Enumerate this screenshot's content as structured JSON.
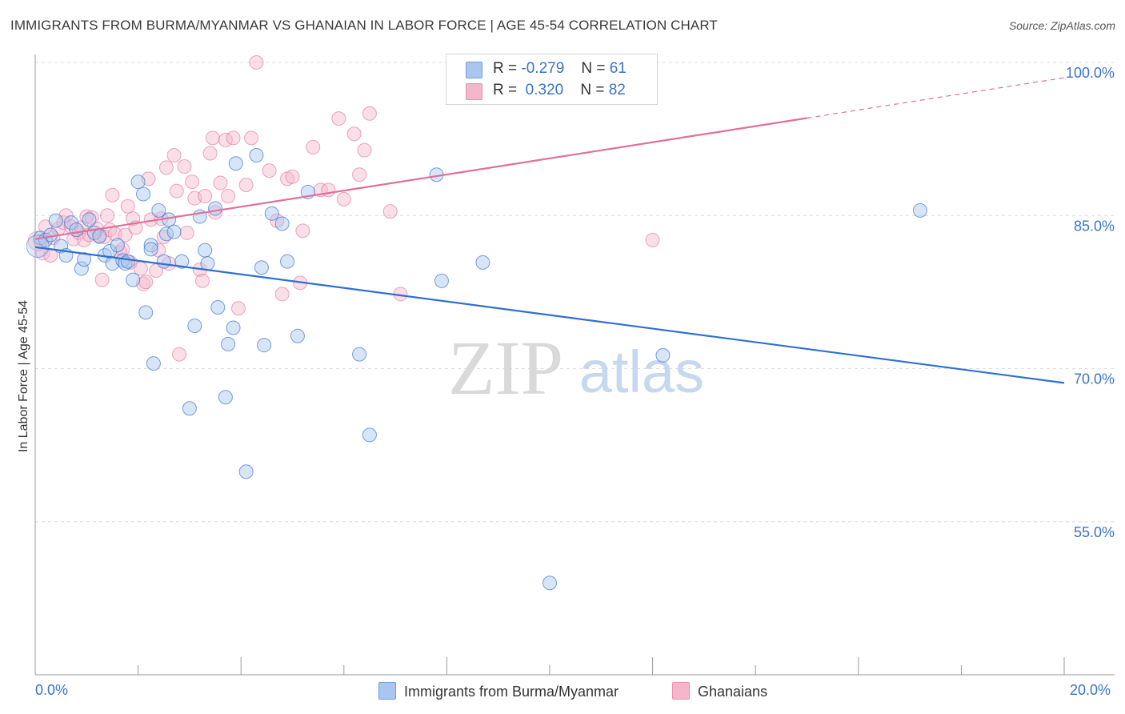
{
  "title": "IMMIGRANTS FROM BURMA/MYANMAR VS GHANAIAN IN LABOR FORCE | AGE 45-54 CORRELATION CHART",
  "source": "Source: ZipAtlas.com",
  "watermark": {
    "zip": "ZIP",
    "atlas": "atlas"
  },
  "colors": {
    "blue": "#3b74c4",
    "blue_fill": "#a9c6ee",
    "blue_line": "#2f6fd0",
    "pink": "#e0709a",
    "pink_fill": "#f5b6cb",
    "pink_line": "#e0709a",
    "grid": "#dddddd"
  },
  "legend": {
    "rows": [
      {
        "r_label": "R =",
        "r_value": "-0.279",
        "n_label": "N =",
        "n_value": "61",
        "color": "#a9c6ee",
        "border": "#6f9fdd"
      },
      {
        "r_label": "R =",
        "r_value": "0.320",
        "n_label": "N =",
        "n_value": "82",
        "color": "#f5b6cb",
        "border": "#e88fb0"
      }
    ],
    "series": [
      {
        "name": "Immigrants from Burma/Myanmar",
        "color": "#a9c6ee",
        "border": "#6f9fdd"
      },
      {
        "name": "Ghanaians",
        "color": "#f5b6cb",
        "border": "#e88fb0"
      }
    ]
  },
  "chart_data": {
    "type": "scatter",
    "title": "IMMIGRANTS FROM BURMA/MYANMAR VS GHANAIAN IN LABOR FORCE | AGE 45-54 CORRELATION CHART",
    "xlabel": "",
    "ylabel": "In Labor Force | Age 45-54",
    "xlim": [
      0,
      20
    ],
    "ylim": [
      40,
      100
    ],
    "x_ticks": [
      "0.0%",
      "20.0%"
    ],
    "y_ticks": [
      {
        "value": 100,
        "label": "100.0%"
      },
      {
        "value": 85,
        "label": "85.0%"
      },
      {
        "value": 70,
        "label": "70.0%"
      },
      {
        "value": 55,
        "label": "55.0%"
      }
    ],
    "series": [
      {
        "name": "Immigrants from Burma/Myanmar",
        "r": -0.279,
        "n": 61,
        "trend": {
          "x0": 0,
          "y0": 81.9,
          "x1": 20,
          "y1": 68.6,
          "solid_to": 20
        },
        "points": [
          [
            0.1,
            82.8
          ],
          [
            0.2,
            82.6
          ],
          [
            0.3,
            83.1
          ],
          [
            0.4,
            84.5
          ],
          [
            0.5,
            82.0
          ],
          [
            0.6,
            81.1
          ],
          [
            0.7,
            84.3
          ],
          [
            0.8,
            83.6
          ],
          [
            0.9,
            79.8
          ],
          [
            0.95,
            80.7
          ],
          [
            1.05,
            84.6
          ],
          [
            1.15,
            83.3
          ],
          [
            1.25,
            83.0
          ],
          [
            1.35,
            81.1
          ],
          [
            1.45,
            81.5
          ],
          [
            1.5,
            80.3
          ],
          [
            1.6,
            82.1
          ],
          [
            1.7,
            80.6
          ],
          [
            1.75,
            80.3
          ],
          [
            1.8,
            80.5
          ],
          [
            1.9,
            78.7
          ],
          [
            2.0,
            88.3
          ],
          [
            2.1,
            87.1
          ],
          [
            2.15,
            75.5
          ],
          [
            2.25,
            82.1
          ],
          [
            2.25,
            81.7
          ],
          [
            2.3,
            70.5
          ],
          [
            2.4,
            85.5
          ],
          [
            2.5,
            80.5
          ],
          [
            2.55,
            83.2
          ],
          [
            2.6,
            84.6
          ],
          [
            2.7,
            83.4
          ],
          [
            2.85,
            80.5
          ],
          [
            3.0,
            66.1
          ],
          [
            3.1,
            74.2
          ],
          [
            3.2,
            84.9
          ],
          [
            3.3,
            81.6
          ],
          [
            3.35,
            80.3
          ],
          [
            3.5,
            85.7
          ],
          [
            3.55,
            76.0
          ],
          [
            3.7,
            67.2
          ],
          [
            3.75,
            72.4
          ],
          [
            3.85,
            74.0
          ],
          [
            3.9,
            90.1
          ],
          [
            4.1,
            59.9
          ],
          [
            4.3,
            90.9
          ],
          [
            4.4,
            79.9
          ],
          [
            4.45,
            72.3
          ],
          [
            4.6,
            85.2
          ],
          [
            4.8,
            84.2
          ],
          [
            4.9,
            80.5
          ],
          [
            5.1,
            73.2
          ],
          [
            5.3,
            87.3
          ],
          [
            6.3,
            71.4
          ],
          [
            6.5,
            63.5
          ],
          [
            7.8,
            89.0
          ],
          [
            7.9,
            78.6
          ],
          [
            8.7,
            80.4
          ],
          [
            10.0,
            49.0
          ],
          [
            12.2,
            71.3
          ],
          [
            17.2,
            85.5
          ]
        ]
      },
      {
        "name": "Ghanaians",
        "r": 0.32,
        "n": 82,
        "trend": {
          "x0": 0,
          "y0": 82.7,
          "x1": 20,
          "y1": 98.5,
          "solid_to": 15
        },
        "points": [
          [
            0.1,
            82.4
          ],
          [
            0.15,
            81.3
          ],
          [
            0.2,
            83.9
          ],
          [
            0.3,
            81.1
          ],
          [
            0.35,
            82.8
          ],
          [
            0.45,
            83.7
          ],
          [
            0.55,
            84.3
          ],
          [
            0.6,
            85.0
          ],
          [
            0.7,
            83.9
          ],
          [
            0.75,
            82.7
          ],
          [
            0.85,
            83.3
          ],
          [
            0.9,
            83.8
          ],
          [
            0.95,
            82.6
          ],
          [
            1.0,
            84.9
          ],
          [
            1.05,
            83.1
          ],
          [
            1.1,
            84.8
          ],
          [
            1.2,
            83.7
          ],
          [
            1.25,
            82.9
          ],
          [
            1.3,
            78.7
          ],
          [
            1.35,
            82.9
          ],
          [
            1.4,
            85.0
          ],
          [
            1.45,
            83.6
          ],
          [
            1.5,
            87.0
          ],
          [
            1.55,
            83.2
          ],
          [
            1.65,
            81.4
          ],
          [
            1.7,
            81.7
          ],
          [
            1.75,
            83.1
          ],
          [
            1.8,
            85.9
          ],
          [
            1.85,
            80.4
          ],
          [
            1.9,
            84.7
          ],
          [
            1.95,
            83.8
          ],
          [
            2.05,
            79.8
          ],
          [
            2.1,
            78.3
          ],
          [
            2.15,
            78.5
          ],
          [
            2.2,
            88.6
          ],
          [
            2.25,
            84.6
          ],
          [
            2.35,
            79.6
          ],
          [
            2.4,
            81.6
          ],
          [
            2.45,
            84.7
          ],
          [
            2.5,
            82.9
          ],
          [
            2.55,
            89.7
          ],
          [
            2.6,
            80.3
          ],
          [
            2.7,
            90.9
          ],
          [
            2.75,
            87.4
          ],
          [
            2.8,
            71.4
          ],
          [
            2.9,
            89.8
          ],
          [
            2.95,
            83.3
          ],
          [
            3.05,
            88.3
          ],
          [
            3.1,
            86.7
          ],
          [
            3.2,
            79.7
          ],
          [
            3.25,
            78.6
          ],
          [
            3.3,
            86.9
          ],
          [
            3.4,
            91.1
          ],
          [
            3.45,
            92.6
          ],
          [
            3.5,
            85.3
          ],
          [
            3.6,
            88.2
          ],
          [
            3.7,
            92.4
          ],
          [
            3.75,
            86.9
          ],
          [
            3.85,
            92.6
          ],
          [
            3.95,
            75.9
          ],
          [
            4.1,
            88.0
          ],
          [
            4.2,
            92.6
          ],
          [
            4.3,
            100.0
          ],
          [
            4.55,
            89.4
          ],
          [
            4.7,
            84.5
          ],
          [
            4.8,
            77.3
          ],
          [
            4.9,
            88.6
          ],
          [
            5.0,
            88.8
          ],
          [
            5.15,
            78.4
          ],
          [
            5.2,
            83.5
          ],
          [
            5.4,
            91.7
          ],
          [
            5.55,
            87.5
          ],
          [
            5.7,
            87.5
          ],
          [
            5.9,
            94.5
          ],
          [
            6.0,
            86.6
          ],
          [
            6.2,
            93.0
          ],
          [
            6.3,
            89.0
          ],
          [
            6.4,
            91.4
          ],
          [
            6.5,
            95.0
          ],
          [
            6.9,
            85.4
          ],
          [
            7.1,
            77.3
          ],
          [
            12.0,
            82.6
          ]
        ]
      }
    ]
  }
}
